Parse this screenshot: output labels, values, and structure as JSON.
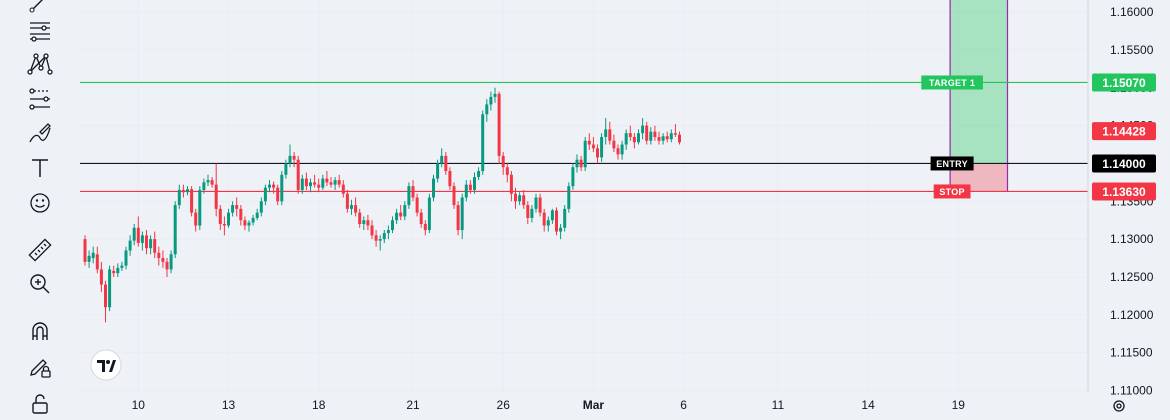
{
  "toolbar": {
    "tools": [
      {
        "name": "trend-line-icon"
      },
      {
        "name": "fib-lines-icon"
      },
      {
        "name": "pattern-icon"
      },
      {
        "name": "prediction-icon"
      },
      {
        "name": "brush-icon"
      },
      {
        "name": "text-icon"
      },
      {
        "name": "emoji-icon"
      },
      {
        "name": "ruler-icon"
      },
      {
        "name": "zoom-icon"
      },
      {
        "name": "magnet-icon"
      },
      {
        "name": "pencil-lock-icon"
      },
      {
        "name": "lock-icon"
      }
    ]
  },
  "chart_data": {
    "type": "candlestick",
    "y_ticks": [
      "1.16000",
      "1.15500",
      "1.15000",
      "1.14500",
      "1.14000",
      "1.13500",
      "1.13000",
      "1.12500",
      "1.12000",
      "1.11500",
      "1.11000"
    ],
    "ylim": [
      1.1098,
      1.1616
    ],
    "x_ticks": [
      {
        "label": "10",
        "index": 13
      },
      {
        "label": "13",
        "index": 35
      },
      {
        "label": "18",
        "index": 57
      },
      {
        "label": "21",
        "index": 80
      },
      {
        "label": "26",
        "index": 102
      },
      {
        "label": "Mar",
        "index": 124
      },
      {
        "label": "6",
        "index": 146
      },
      {
        "label": "11",
        "index": 169
      },
      {
        "label": "14",
        "index": 191
      },
      {
        "label": "19",
        "index": 213
      }
    ],
    "levels": [
      {
        "name": "target",
        "tag": "TARGET 1",
        "value": 1.1507,
        "label": "1.15070",
        "color": "#22c55e",
        "label_bg": "#22c55e"
      },
      {
        "name": "entry",
        "tag": "ENTRY",
        "value": 1.14,
        "label": "1.14000",
        "color": "#131722",
        "label_bg": "#000000"
      },
      {
        "name": "stop",
        "tag": "STOP",
        "value": 1.1363,
        "label": "1.13630",
        "color": "#f23645",
        "label_bg": "#f23645"
      }
    ],
    "current_price": {
      "value": 1.14428,
      "label": "1.14428",
      "color": "#f23645"
    },
    "position_box": {
      "start_index": 211,
      "end_index": 225,
      "top_value": 1.1616,
      "entry": 1.14,
      "stop": 1.1363
    },
    "colors": {
      "up": "#089981",
      "down": "#f23645",
      "grid": "#e9edf3"
    },
    "candles": [
      [
        1.13,
        1.1305,
        1.1265,
        1.127
      ],
      [
        1.127,
        1.1285,
        1.1262,
        1.1278
      ],
      [
        1.1275,
        1.129,
        1.1268,
        1.1282
      ],
      [
        1.128,
        1.129,
        1.1255,
        1.126
      ],
      [
        1.126,
        1.127,
        1.123,
        1.124
      ],
      [
        1.124,
        1.1245,
        1.119,
        1.121
      ],
      [
        1.121,
        1.1265,
        1.1205,
        1.126
      ],
      [
        1.1258,
        1.1265,
        1.125,
        1.1255
      ],
      [
        1.1255,
        1.1268,
        1.125,
        1.1262
      ],
      [
        1.1262,
        1.127,
        1.1258,
        1.1265
      ],
      [
        1.1265,
        1.129,
        1.126,
        1.1285
      ],
      [
        1.1285,
        1.1305,
        1.1278,
        1.1298
      ],
      [
        1.1298,
        1.132,
        1.1292,
        1.1315
      ],
      [
        1.1315,
        1.133,
        1.129,
        1.1295
      ],
      [
        1.1295,
        1.131,
        1.1285,
        1.1305
      ],
      [
        1.1305,
        1.1312,
        1.128,
        1.1288
      ],
      [
        1.1288,
        1.1305,
        1.128,
        1.13
      ],
      [
        1.13,
        1.131,
        1.1275,
        1.1282
      ],
      [
        1.1282,
        1.129,
        1.1265,
        1.1275
      ],
      [
        1.1275,
        1.1285,
        1.1262,
        1.127
      ],
      [
        1.127,
        1.1275,
        1.125,
        1.126
      ],
      [
        1.126,
        1.1285,
        1.1255,
        1.128
      ],
      [
        1.128,
        1.135,
        1.1275,
        1.1345
      ],
      [
        1.1345,
        1.1372,
        1.134,
        1.1365
      ],
      [
        1.1365,
        1.1372,
        1.1355,
        1.1362
      ],
      [
        1.1362,
        1.137,
        1.1358,
        1.1366
      ],
      [
        1.1366,
        1.137,
        1.133,
        1.1335
      ],
      [
        1.1335,
        1.134,
        1.131,
        1.1318
      ],
      [
        1.1318,
        1.137,
        1.1312,
        1.1365
      ],
      [
        1.1365,
        1.138,
        1.136,
        1.1375
      ],
      [
        1.1375,
        1.1385,
        1.137,
        1.1378
      ],
      [
        1.1378,
        1.1382,
        1.1368,
        1.1372
      ],
      [
        1.1372,
        1.14,
        1.133,
        1.134
      ],
      [
        1.134,
        1.1345,
        1.1312,
        1.132
      ],
      [
        1.132,
        1.133,
        1.1305,
        1.1318
      ],
      [
        1.1318,
        1.134,
        1.1315,
        1.1335
      ],
      [
        1.1335,
        1.135,
        1.133,
        1.1345
      ],
      [
        1.1345,
        1.1355,
        1.133,
        1.134
      ],
      [
        1.134,
        1.1345,
        1.1318,
        1.1325
      ],
      [
        1.1325,
        1.133,
        1.1312,
        1.1318
      ],
      [
        1.1318,
        1.1325,
        1.131,
        1.1322
      ],
      [
        1.1322,
        1.1332,
        1.1318,
        1.1328
      ],
      [
        1.1328,
        1.134,
        1.1325,
        1.1335
      ],
      [
        1.1335,
        1.1355,
        1.133,
        1.135
      ],
      [
        1.135,
        1.1372,
        1.1345,
        1.1368
      ],
      [
        1.1368,
        1.1378,
        1.1362,
        1.1372
      ],
      [
        1.1372,
        1.1376,
        1.136,
        1.1368
      ],
      [
        1.1368,
        1.1372,
        1.1345,
        1.135
      ],
      [
        1.135,
        1.139,
        1.1345,
        1.1385
      ],
      [
        1.1385,
        1.1405,
        1.138,
        1.14
      ],
      [
        1.14,
        1.1425,
        1.1395,
        1.141
      ],
      [
        1.141,
        1.1415,
        1.1395,
        1.1405
      ],
      [
        1.1405,
        1.141,
        1.136,
        1.1365
      ],
      [
        1.1365,
        1.1385,
        1.136,
        1.138
      ],
      [
        1.138,
        1.1388,
        1.1365,
        1.137
      ],
      [
        1.137,
        1.138,
        1.1362,
        1.1375
      ],
      [
        1.1375,
        1.1385,
        1.1368,
        1.1372
      ],
      [
        1.1372,
        1.138,
        1.1362,
        1.1368
      ],
      [
        1.1368,
        1.1385,
        1.1365,
        1.138
      ],
      [
        1.138,
        1.139,
        1.137,
        1.1375
      ],
      [
        1.1375,
        1.1382,
        1.1368,
        1.1372
      ],
      [
        1.1372,
        1.1382,
        1.1365,
        1.1378
      ],
      [
        1.1378,
        1.1385,
        1.1368,
        1.1372
      ],
      [
        1.1372,
        1.1378,
        1.1355,
        1.136
      ],
      [
        1.136,
        1.1365,
        1.1335,
        1.134
      ],
      [
        1.134,
        1.1352,
        1.1332,
        1.1345
      ],
      [
        1.1345,
        1.1355,
        1.133,
        1.1335
      ],
      [
        1.1335,
        1.134,
        1.1315,
        1.132
      ],
      [
        1.132,
        1.133,
        1.1312,
        1.1325
      ],
      [
        1.1325,
        1.1332,
        1.1312,
        1.1318
      ],
      [
        1.1318,
        1.1325,
        1.13,
        1.1305
      ],
      [
        1.1305,
        1.1312,
        1.129,
        1.1298
      ],
      [
        1.1298,
        1.1305,
        1.1285,
        1.13
      ],
      [
        1.13,
        1.1312,
        1.1295,
        1.1308
      ],
      [
        1.1308,
        1.1318,
        1.13,
        1.1312
      ],
      [
        1.1312,
        1.133,
        1.1308,
        1.1325
      ],
      [
        1.1325,
        1.134,
        1.132,
        1.1335
      ],
      [
        1.1335,
        1.1345,
        1.1325,
        1.133
      ],
      [
        1.133,
        1.135,
        1.1325,
        1.1345
      ],
      [
        1.1345,
        1.1375,
        1.134,
        1.137
      ],
      [
        1.137,
        1.1378,
        1.135,
        1.1355
      ],
      [
        1.1355,
        1.136,
        1.133,
        1.1335
      ],
      [
        1.1335,
        1.134,
        1.1315,
        1.132
      ],
      [
        1.132,
        1.1325,
        1.1305,
        1.1312
      ],
      [
        1.1312,
        1.136,
        1.1308,
        1.1355
      ],
      [
        1.1355,
        1.1385,
        1.135,
        1.138
      ],
      [
        1.138,
        1.1405,
        1.1375,
        1.14
      ],
      [
        1.14,
        1.142,
        1.1395,
        1.141
      ],
      [
        1.141,
        1.1415,
        1.1385,
        1.139
      ],
      [
        1.139,
        1.1395,
        1.1365,
        1.137
      ],
      [
        1.137,
        1.1375,
        1.134,
        1.1345
      ],
      [
        1.1345,
        1.135,
        1.1305,
        1.1312
      ],
      [
        1.1312,
        1.136,
        1.13,
        1.1355
      ],
      [
        1.1355,
        1.1378,
        1.135,
        1.1372
      ],
      [
        1.1372,
        1.1378,
        1.136,
        1.1365
      ],
      [
        1.1365,
        1.1388,
        1.136,
        1.1382
      ],
      [
        1.1382,
        1.1395,
        1.1378,
        1.139
      ],
      [
        1.139,
        1.147,
        1.1385,
        1.1465
      ],
      [
        1.1465,
        1.1485,
        1.1455,
        1.1478
      ],
      [
        1.1478,
        1.1495,
        1.147,
        1.1488
      ],
      [
        1.1488,
        1.15,
        1.148,
        1.1492
      ],
      [
        1.1492,
        1.1495,
        1.14,
        1.141
      ],
      [
        1.141,
        1.1415,
        1.1385,
        1.1395
      ],
      [
        1.1395,
        1.14,
        1.1375,
        1.1385
      ],
      [
        1.1385,
        1.139,
        1.135,
        1.136
      ],
      [
        1.136,
        1.1368,
        1.134,
        1.135
      ],
      [
        1.135,
        1.1362,
        1.1345,
        1.1358
      ],
      [
        1.1358,
        1.1365,
        1.134,
        1.1345
      ],
      [
        1.1345,
        1.135,
        1.132,
        1.1328
      ],
      [
        1.1328,
        1.1345,
        1.1322,
        1.134
      ],
      [
        1.134,
        1.136,
        1.1335,
        1.1355
      ],
      [
        1.1355,
        1.136,
        1.133,
        1.1335
      ],
      [
        1.1335,
        1.134,
        1.131,
        1.1318
      ],
      [
        1.1318,
        1.133,
        1.131,
        1.1325
      ],
      [
        1.1325,
        1.134,
        1.132,
        1.1338
      ],
      [
        1.1338,
        1.1342,
        1.1305,
        1.131
      ],
      [
        1.131,
        1.132,
        1.13,
        1.1315
      ],
      [
        1.1315,
        1.1345,
        1.131,
        1.134
      ],
      [
        1.134,
        1.1375,
        1.1335,
        1.137
      ],
      [
        1.137,
        1.14,
        1.1365,
        1.1395
      ],
      [
        1.1395,
        1.1412,
        1.1388,
        1.1405
      ],
      [
        1.1405,
        1.141,
        1.139,
        1.1395
      ],
      [
        1.1395,
        1.1435,
        1.139,
        1.143
      ],
      [
        1.143,
        1.144,
        1.1418,
        1.1425
      ],
      [
        1.1425,
        1.1435,
        1.1415,
        1.142
      ],
      [
        1.142,
        1.1425,
        1.14,
        1.1408
      ],
      [
        1.1408,
        1.144,
        1.1402,
        1.1435
      ],
      [
        1.1435,
        1.146,
        1.1425,
        1.1445
      ],
      [
        1.1445,
        1.1455,
        1.1425,
        1.143
      ],
      [
        1.143,
        1.1438,
        1.1415,
        1.142
      ],
      [
        1.142,
        1.1425,
        1.1405,
        1.1412
      ],
      [
        1.1412,
        1.143,
        1.1405,
        1.1425
      ],
      [
        1.1425,
        1.1445,
        1.1418,
        1.144
      ],
      [
        1.144,
        1.145,
        1.143,
        1.1435
      ],
      [
        1.1435,
        1.144,
        1.142,
        1.1428
      ],
      [
        1.1428,
        1.1445,
        1.1425,
        1.144
      ],
      [
        1.144,
        1.146,
        1.1432,
        1.145
      ],
      [
        1.145,
        1.1455,
        1.1425,
        1.143
      ],
      [
        1.143,
        1.1448,
        1.1425,
        1.1442
      ],
      [
        1.1442,
        1.145,
        1.143,
        1.1435
      ],
      [
        1.1435,
        1.1442,
        1.1425,
        1.143
      ],
      [
        1.143,
        1.144,
        1.1425,
        1.1436
      ],
      [
        1.1436,
        1.1442,
        1.1428,
        1.1432
      ],
      [
        1.1432,
        1.1445,
        1.1428,
        1.144
      ],
      [
        1.144,
        1.1452,
        1.1435,
        1.1438
      ],
      [
        1.1438,
        1.1442,
        1.1425,
        1.1428
      ]
    ]
  }
}
